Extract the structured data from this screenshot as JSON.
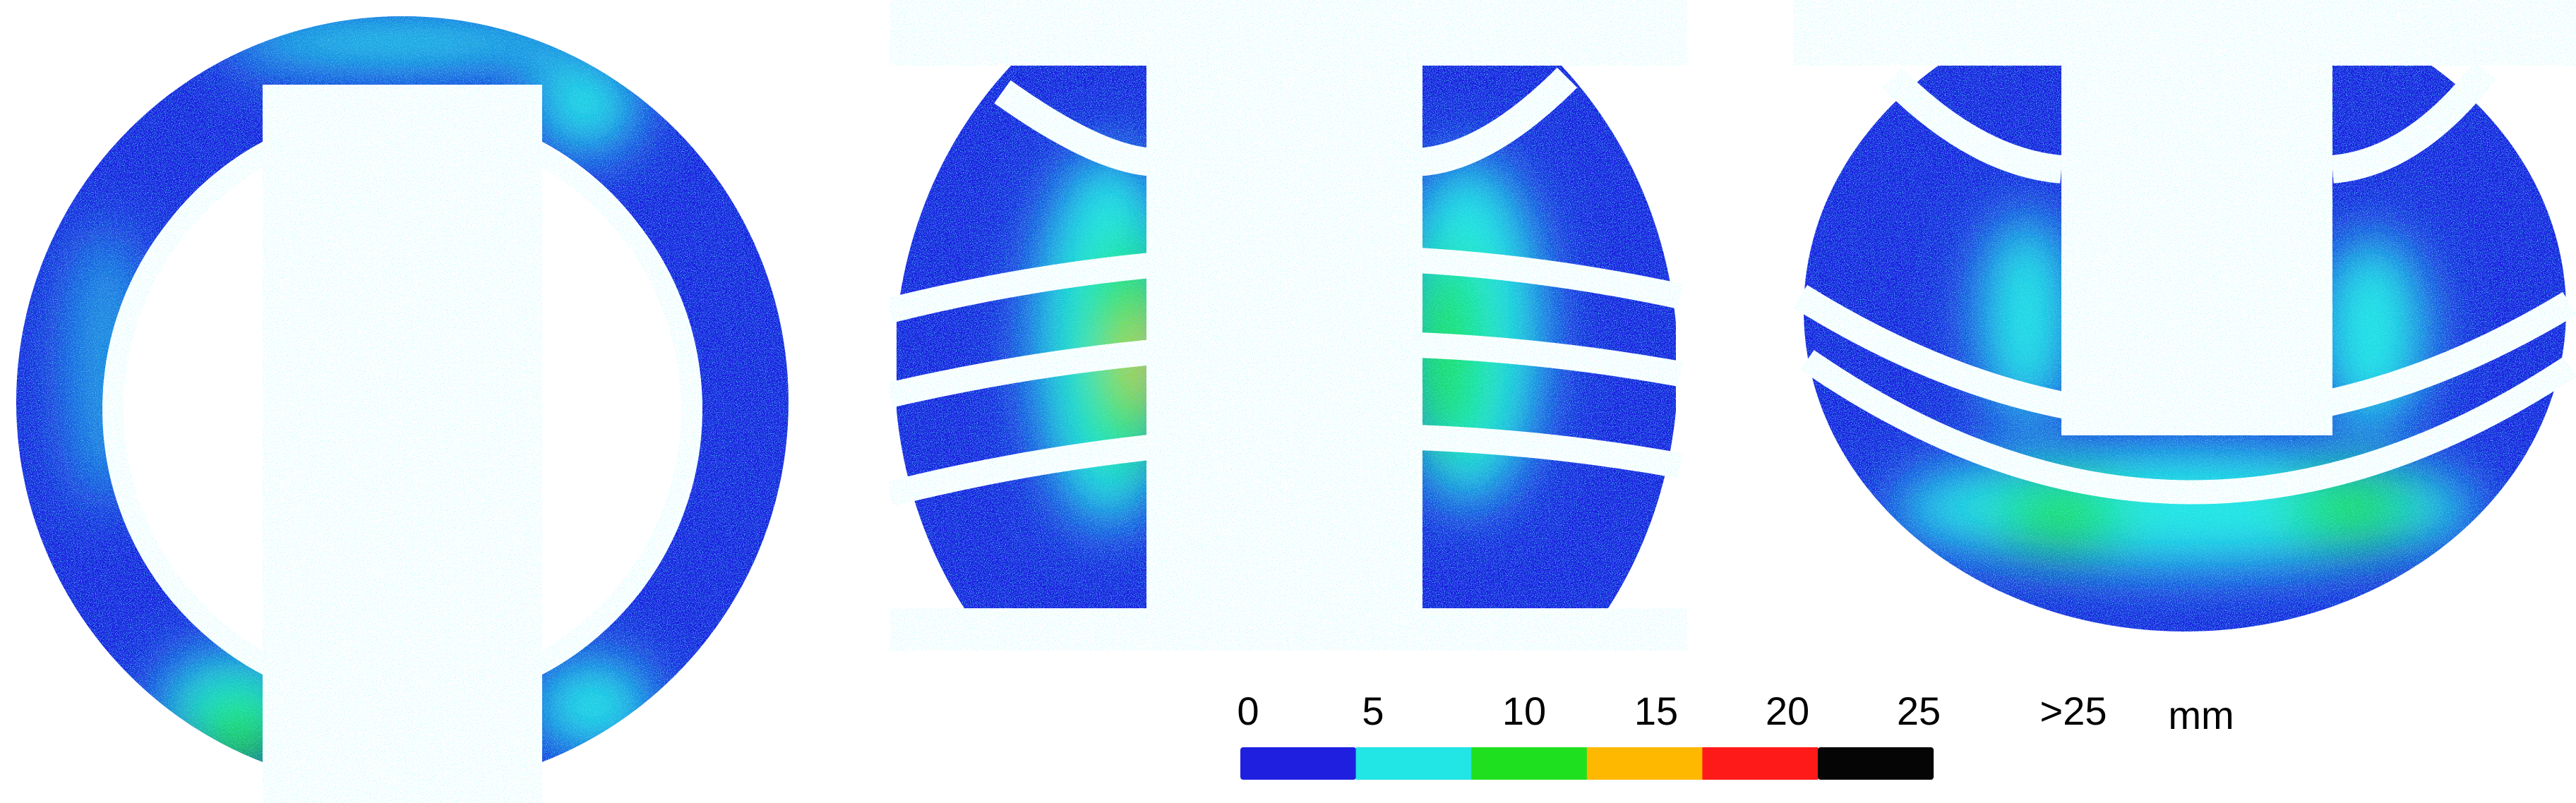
{
  "legend": {
    "labels": [
      "0",
      "5",
      "10",
      "15",
      "20",
      "25",
      ">25"
    ],
    "unit": "mm",
    "colors": [
      "#1f1fe0",
      "#22e5e5",
      "#1fe01f",
      "#ffb800",
      "#ff1a1a",
      "#050505"
    ]
  }
}
